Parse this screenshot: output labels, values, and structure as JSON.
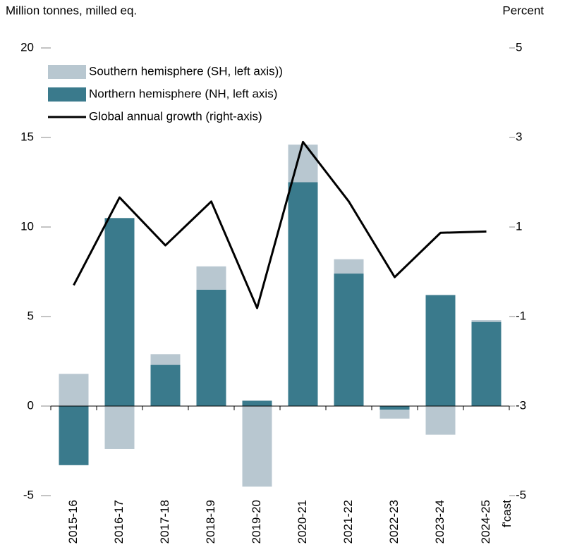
{
  "chart_data": {
    "type": "bar",
    "y_label": "Million tonnes, milled eq.",
    "y2_label": "Percent",
    "annotation": "f'cast",
    "categories": [
      "2015-16",
      "2016-17",
      "2017-18",
      "2018-19",
      "2019-20",
      "2020-21",
      "2021-22",
      "2022-23",
      "2023-24",
      "2024-25"
    ],
    "series": [
      {
        "name": "Southern hemisphere (SH, left axis))",
        "color": "#b8c7d0",
        "type": "bar",
        "values": [
          1.8,
          -2.4,
          0.6,
          1.3,
          -4.5,
          2.1,
          0.8,
          -0.5,
          -1.6,
          0.1
        ]
      },
      {
        "name": "Northern hemisphere (NH, left axis)",
        "color": "#3a7a8c",
        "type": "bar",
        "values": [
          -3.3,
          10.5,
          2.3,
          6.5,
          0.3,
          12.5,
          7.4,
          -0.2,
          6.2,
          4.7
        ]
      },
      {
        "name": "Global annual growth (right-axis)",
        "color": "#000000",
        "type": "line",
        "axis": "y2",
        "values": [
          -0.3,
          1.66,
          0.59,
          1.57,
          -0.81,
          2.9,
          1.57,
          -0.12,
          0.87,
          0.9
        ]
      }
    ],
    "stack_order": [
      1,
      0
    ],
    "ylim": [
      -5,
      20
    ],
    "yticks": [
      -5,
      0,
      5,
      10,
      15,
      20
    ],
    "y2lim": [
      -5,
      5
    ],
    "y2ticks": [
      -5,
      -3,
      -1,
      1,
      3,
      5
    ],
    "grid": false,
    "legend": "top-left"
  }
}
